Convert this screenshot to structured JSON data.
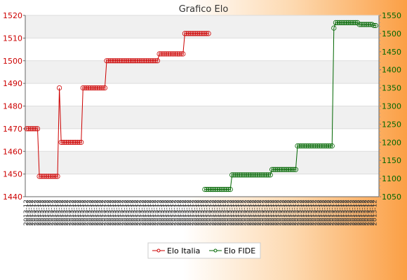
{
  "chart_data": {
    "type": "line",
    "title": "Grafico Elo",
    "xlabel": "",
    "ylabel": "",
    "grid": true,
    "legend_position": "bottom-center",
    "y_left_range": [
      1440,
      1520
    ],
    "y_left_ticks": [
      1440,
      1450,
      1460,
      1470,
      1480,
      1490,
      1500,
      1510,
      1520
    ],
    "y_right_range": [
      1050,
      1550
    ],
    "y_right_ticks": [
      1050,
      1100,
      1150,
      1200,
      1250,
      1300,
      1350,
      1400,
      1450,
      1500,
      1550
    ],
    "colors": {
      "italia": "#cc0000",
      "fide": "#006600"
    },
    "x_count": 140,
    "x_tick_label": "2013-12",
    "series": [
      {
        "name": "Elo Italia",
        "axis": "left",
        "segments": [
          {
            "from": 0,
            "to": 7,
            "value": 1470
          },
          {
            "from": 7,
            "to": 18,
            "value": 1449
          },
          {
            "from": 18,
            "to": 19,
            "value": 1488
          },
          {
            "from": 19,
            "to": 31,
            "value": 1464
          },
          {
            "from": 31,
            "to": 44,
            "value": 1488
          },
          {
            "from": 44,
            "to": 73,
            "value": 1500
          },
          {
            "from": 73,
            "to": 87,
            "value": 1503
          },
          {
            "from": 87,
            "to": 101,
            "value": 1512
          }
        ]
      },
      {
        "name": "Elo FIDE",
        "axis": "right",
        "segments": [
          {
            "from": 98,
            "to": 113,
            "value": 1070
          },
          {
            "from": 113,
            "to": 135,
            "value": 1110
          },
          {
            "from": 135,
            "to": 149,
            "value": 1125
          },
          {
            "from": 149,
            "to": 169,
            "value": 1190
          },
          {
            "from": 169,
            "to": 170,
            "value": 1515
          },
          {
            "from": 170,
            "to": 183,
            "value": 1530
          },
          {
            "from": 183,
            "to": 191,
            "value": 1525
          },
          {
            "from": 191,
            "to": 193,
            "value": 1522
          }
        ]
      }
    ]
  },
  "legend": {
    "italia_label": "Elo Italia",
    "fide_label": "Elo FIDE"
  }
}
